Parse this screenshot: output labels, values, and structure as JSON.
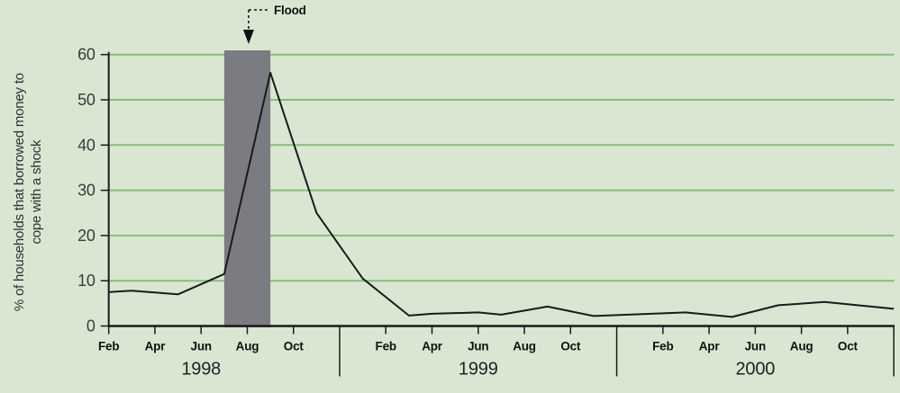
{
  "chart": {
    "colors": {
      "background": "#d9e7d2",
      "gridline": "#8aba7c",
      "flood_band": "#7b7b82",
      "data_line": "#1a1a1a",
      "axis": "#1a1a1a",
      "tick_text": "#3a3a3a",
      "label_text": "#303030"
    }
  },
  "chart_data": {
    "type": "line",
    "title": "",
    "ylabel": "% of households that borrowed money to cope with a shock",
    "ylabel_lines": [
      "% of households that borrowed money to",
      "cope with a shock"
    ],
    "ylim": [
      0,
      60
    ],
    "yticks": [
      0,
      10,
      20,
      30,
      40,
      50,
      60
    ],
    "grid": true,
    "legend": "none",
    "x_axis": {
      "month_tick_labels": [
        "Feb",
        "Apr",
        "Jun",
        "Aug",
        "Oct"
      ],
      "years": [
        {
          "label": "1998",
          "feb_month_index": 0
        },
        {
          "label": "1999",
          "feb_month_index": 12
        },
        {
          "label": "2000",
          "feb_month_index": 24
        }
      ],
      "range": [
        "Feb 1998",
        "Dec 2000"
      ]
    },
    "flood_annotation": {
      "label": "Flood",
      "band_from": "Jul 1998",
      "band_to": "Sep 1998",
      "band_from_m": 5,
      "band_to_m": 7
    },
    "series": [
      {
        "name": "% of households that borrowed money to cope with a shock",
        "points": [
          {
            "month": "Feb 1998",
            "m": 0,
            "value": 7.5
          },
          {
            "month": "Mar 1998",
            "m": 1,
            "value": 7.8
          },
          {
            "month": "May 1998",
            "m": 3,
            "value": 7.0
          },
          {
            "month": "Jul 1998",
            "m": 5,
            "value": 11.5
          },
          {
            "month": "Sep 1998",
            "m": 7,
            "value": 56.0
          },
          {
            "month": "Nov 1998",
            "m": 9,
            "value": 25.0
          },
          {
            "month": "Jan 1999",
            "m": 11,
            "value": 10.5
          },
          {
            "month": "Mar 1999",
            "m": 13,
            "value": 2.3
          },
          {
            "month": "Apr 1999",
            "m": 14,
            "value": 2.7
          },
          {
            "month": "Jun 1999",
            "m": 16,
            "value": 3.0
          },
          {
            "month": "Jul 1999",
            "m": 17,
            "value": 2.5
          },
          {
            "month": "Sep 1999",
            "m": 19,
            "value": 4.3
          },
          {
            "month": "Nov 1999",
            "m": 21,
            "value": 2.2
          },
          {
            "month": "Jan 2000",
            "m": 23,
            "value": 2.6
          },
          {
            "month": "Mar 2000",
            "m": 25,
            "value": 3.0
          },
          {
            "month": "May 2000",
            "m": 27,
            "value": 2.0
          },
          {
            "month": "Jul 2000",
            "m": 29,
            "value": 4.6
          },
          {
            "month": "Sep 2000",
            "m": 31,
            "value": 5.3
          },
          {
            "month": "Dec 2000",
            "m": 34,
            "value": 3.8
          }
        ]
      }
    ]
  }
}
